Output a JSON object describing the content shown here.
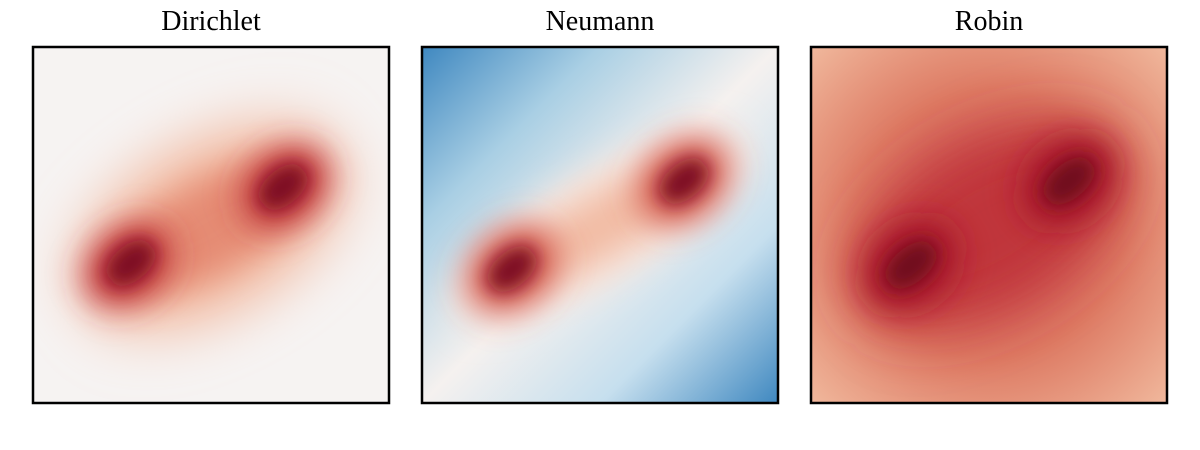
{
  "panels": [
    {
      "title": "Dirichlet"
    },
    {
      "title": "Neumann"
    },
    {
      "title": "Robin"
    }
  ]
}
